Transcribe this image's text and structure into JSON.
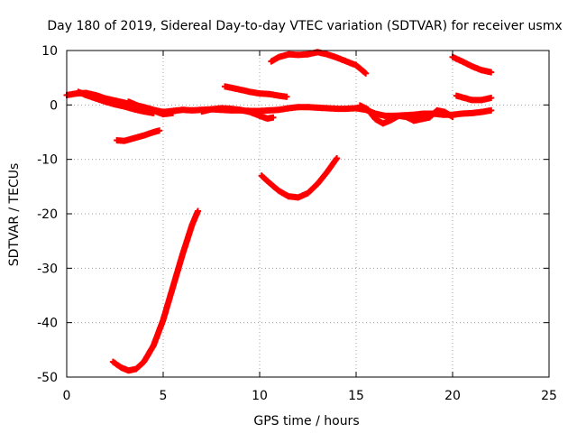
{
  "chart_data": {
    "type": "scatter",
    "title": "Day 180 of 2019, Sidereal Day-to-day VTEC variation (SDTVAR) for receiver usmx",
    "xlabel": "GPS time / hours",
    "ylabel": "SDTVAR / TECUs",
    "xlim": [
      0,
      25
    ],
    "ylim": [
      -50,
      10
    ],
    "xticks": [
      0,
      5,
      10,
      15,
      20,
      25
    ],
    "xtick_labels": [
      "0",
      "5",
      "10",
      "15",
      "20",
      "25"
    ],
    "yticks": [
      -50,
      -40,
      -30,
      -20,
      -10,
      0,
      10
    ],
    "ytick_labels": [
      "-50",
      "-40",
      "-30",
      "-20",
      "-10",
      "0",
      "10"
    ],
    "grid": true,
    "marker": "plus",
    "color": "#ff0000",
    "series": [
      {
        "name": "track-1",
        "points": [
          [
            0,
            1.8
          ],
          [
            0.5,
            2.1
          ],
          [
            1,
            2.2
          ],
          [
            1.5,
            1.8
          ],
          [
            2,
            1.2
          ],
          [
            2.5,
            0.8
          ],
          [
            3,
            0.4
          ],
          [
            3.5,
            0
          ],
          [
            4,
            -0.4
          ],
          [
            4.5,
            -0.9
          ],
          [
            5,
            -1.3
          ],
          [
            5.5,
            -1.1
          ],
          [
            6,
            -0.9
          ],
          [
            6.5,
            -1.0
          ],
          [
            7,
            -0.9
          ],
          [
            7.5,
            -0.8
          ],
          [
            8,
            -0.9
          ],
          [
            8.5,
            -1.0
          ],
          [
            9,
            -1.0
          ],
          [
            9.5,
            -1.1
          ],
          [
            10,
            -1.1
          ],
          [
            10.5,
            -1.0
          ],
          [
            11,
            -0.9
          ],
          [
            11.5,
            -0.6
          ],
          [
            12,
            -0.4
          ],
          [
            12.5,
            -0.4
          ],
          [
            13,
            -0.5
          ],
          [
            13.5,
            -0.6
          ],
          [
            14,
            -0.7
          ],
          [
            14.5,
            -0.7
          ],
          [
            15,
            -0.6
          ],
          [
            15.5,
            -0.9
          ],
          [
            16,
            -1.6
          ],
          [
            16.5,
            -2.0
          ],
          [
            17,
            -2.0
          ],
          [
            17.5,
            -1.9
          ],
          [
            18,
            -1.8
          ],
          [
            18.5,
            -1.6
          ],
          [
            19,
            -1.6
          ],
          [
            19.5,
            -1.8
          ],
          [
            20,
            -1.8
          ],
          [
            20.5,
            -1.6
          ],
          [
            21,
            -1.5
          ],
          [
            21.5,
            -1.3
          ],
          [
            22,
            -1.0
          ]
        ]
      },
      {
        "name": "track-2",
        "points": [
          [
            0.6,
            2.4
          ],
          [
            1,
            1.8
          ],
          [
            1.5,
            1.2
          ],
          [
            2,
            0.6
          ],
          [
            2.5,
            0.1
          ],
          [
            3,
            -0.3
          ],
          [
            3.5,
            -0.8
          ],
          [
            4,
            -1.2
          ],
          [
            4.5,
            -1.5
          ]
        ]
      },
      {
        "name": "track-3",
        "points": [
          [
            3.2,
            0.6
          ],
          [
            3.8,
            -0.3
          ],
          [
            4.4,
            -0.9
          ],
          [
            5,
            -1.7
          ],
          [
            5.5,
            -1.5
          ]
        ]
      },
      {
        "name": "track-4",
        "points": [
          [
            7,
            -1.2
          ],
          [
            7.5,
            -0.8
          ],
          [
            8,
            -0.6
          ],
          [
            8.5,
            -0.7
          ],
          [
            9,
            -0.9
          ],
          [
            9.5,
            -1.3
          ],
          [
            10,
            -2.0
          ],
          [
            10.4,
            -2.5
          ],
          [
            10.7,
            -2.3
          ]
        ]
      },
      {
        "name": "track-5",
        "points": [
          [
            15.2,
            -0.1
          ],
          [
            15.6,
            -0.8
          ],
          [
            16,
            -2.6
          ],
          [
            16.4,
            -3.4
          ],
          [
            16.8,
            -2.8
          ],
          [
            17.2,
            -2.0
          ],
          [
            17.6,
            -2.2
          ],
          [
            18,
            -2.9
          ],
          [
            18.4,
            -2.6
          ],
          [
            18.8,
            -2.3
          ],
          [
            19.2,
            -1.0
          ],
          [
            19.6,
            -1.3
          ],
          [
            20,
            -2.2
          ]
        ]
      },
      {
        "name": "track-6",
        "points": [
          [
            2.6,
            -6.5
          ],
          [
            3.0,
            -6.6
          ],
          [
            3.5,
            -6.1
          ],
          [
            4.0,
            -5.6
          ],
          [
            4.5,
            -5.0
          ],
          [
            4.8,
            -4.7
          ]
        ]
      },
      {
        "name": "track-7",
        "points": [
          [
            8.2,
            3.4
          ],
          [
            8.6,
            3.1
          ],
          [
            9,
            2.8
          ],
          [
            9.5,
            2.4
          ],
          [
            10,
            2.1
          ],
          [
            10.5,
            2.0
          ],
          [
            11,
            1.7
          ],
          [
            11.4,
            1.5
          ]
        ]
      },
      {
        "name": "track-8",
        "points": [
          [
            10.6,
            8.0
          ],
          [
            11,
            8.8
          ],
          [
            11.5,
            9.3
          ],
          [
            12,
            9.2
          ],
          [
            12.5,
            9.3
          ],
          [
            13,
            9.7
          ],
          [
            13.5,
            9.3
          ],
          [
            14,
            8.7
          ],
          [
            14.5,
            8.0
          ],
          [
            15,
            7.3
          ],
          [
            15.5,
            5.8
          ]
        ]
      },
      {
        "name": "track-9",
        "points": [
          [
            20,
            8.8
          ],
          [
            20.5,
            8.0
          ],
          [
            21,
            7.1
          ],
          [
            21.5,
            6.4
          ],
          [
            22,
            6.0
          ]
        ]
      },
      {
        "name": "track-10",
        "points": [
          [
            20.2,
            1.7
          ],
          [
            20.6,
            1.3
          ],
          [
            21,
            0.9
          ],
          [
            21.5,
            0.9
          ],
          [
            22,
            1.3
          ]
        ]
      },
      {
        "name": "track-11",
        "points": [
          [
            10.1,
            -13.0
          ],
          [
            10.5,
            -14.3
          ],
          [
            11,
            -15.8
          ],
          [
            11.5,
            -16.8
          ],
          [
            12,
            -17.0
          ],
          [
            12.5,
            -16.2
          ],
          [
            13,
            -14.5
          ],
          [
            13.5,
            -12.3
          ],
          [
            14,
            -9.8
          ]
        ]
      },
      {
        "name": "track-12",
        "points": [
          [
            2.4,
            -47.2
          ],
          [
            2.8,
            -48.2
          ],
          [
            3.2,
            -48.8
          ],
          [
            3.6,
            -48.5
          ],
          [
            4,
            -47.2
          ],
          [
            4.5,
            -44.2
          ],
          [
            5,
            -39.5
          ],
          [
            5.5,
            -33.5
          ],
          [
            6,
            -27.5
          ],
          [
            6.5,
            -22.0
          ],
          [
            6.8,
            -19.5
          ]
        ]
      }
    ]
  }
}
